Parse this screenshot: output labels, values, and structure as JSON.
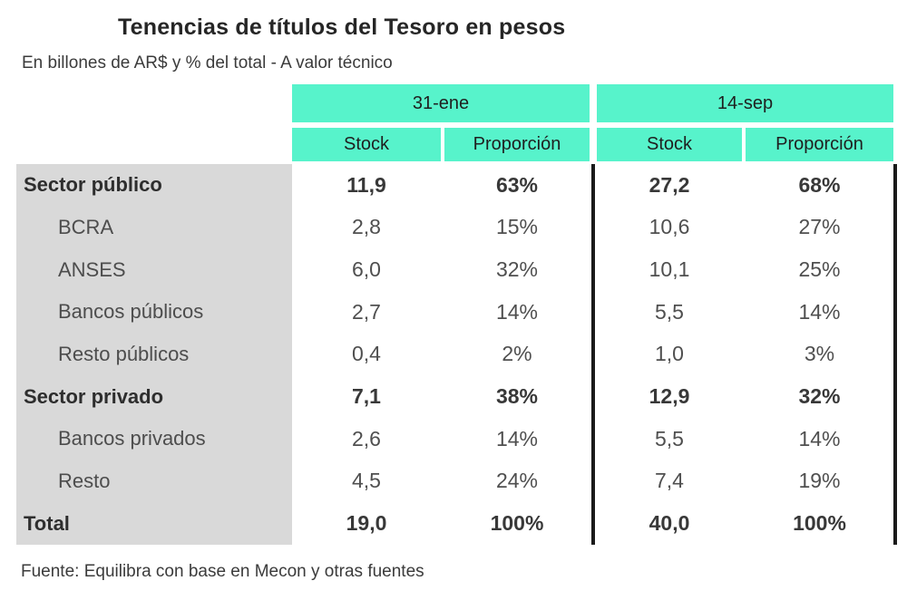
{
  "title": "Tenencias de títulos del Tesoro en pesos",
  "subtitle": "En billones de AR$ y % del total - A valor técnico",
  "source": "Fuente: Equilibra con base en Mecon y otras fuentes",
  "colors": {
    "header_bg": "#57f3cb",
    "label_col_bg": "#d9d9d9",
    "divider": "#1a1a1a"
  },
  "table": {
    "groups": [
      "31-ene",
      "14-sep"
    ],
    "columns": [
      "Stock",
      "Proporción",
      "Stock",
      "Proporción"
    ]
  },
  "chart_data": {
    "type": "table",
    "title": "Tenencias de títulos del Tesoro en pesos",
    "subtitle": "En billones de AR$ y % del total - A valor técnico",
    "column_groups": [
      "31-ene",
      "14-sep"
    ],
    "columns": [
      "Stock",
      "Proporción",
      "Stock",
      "Proporción"
    ],
    "rows": [
      {
        "label": "Sector público",
        "style": "bold",
        "values": [
          "11,9",
          "63%",
          "27,2",
          "68%"
        ]
      },
      {
        "label": "BCRA",
        "style": "sub",
        "values": [
          "2,8",
          "15%",
          "10,6",
          "27%"
        ]
      },
      {
        "label": "ANSES",
        "style": "sub",
        "values": [
          "6,0",
          "32%",
          "10,1",
          "25%"
        ]
      },
      {
        "label": "Bancos públicos",
        "style": "sub",
        "values": [
          "2,7",
          "14%",
          "5,5",
          "14%"
        ]
      },
      {
        "label": "Resto públicos",
        "style": "sub",
        "values": [
          "0,4",
          "2%",
          "1,0",
          "3%"
        ]
      },
      {
        "label": "Sector privado",
        "style": "bold",
        "values": [
          "7,1",
          "38%",
          "12,9",
          "32%"
        ]
      },
      {
        "label": "Bancos privados",
        "style": "sub",
        "values": [
          "2,6",
          "14%",
          "5,5",
          "14%"
        ]
      },
      {
        "label": "Resto",
        "style": "sub",
        "values": [
          "4,5",
          "24%",
          "7,4",
          "19%"
        ]
      },
      {
        "label": "Total",
        "style": "bold",
        "values": [
          "19,0",
          "100%",
          "40,0",
          "100%"
        ]
      }
    ],
    "source": "Fuente: Equilibra con base en Mecon y otras fuentes"
  }
}
